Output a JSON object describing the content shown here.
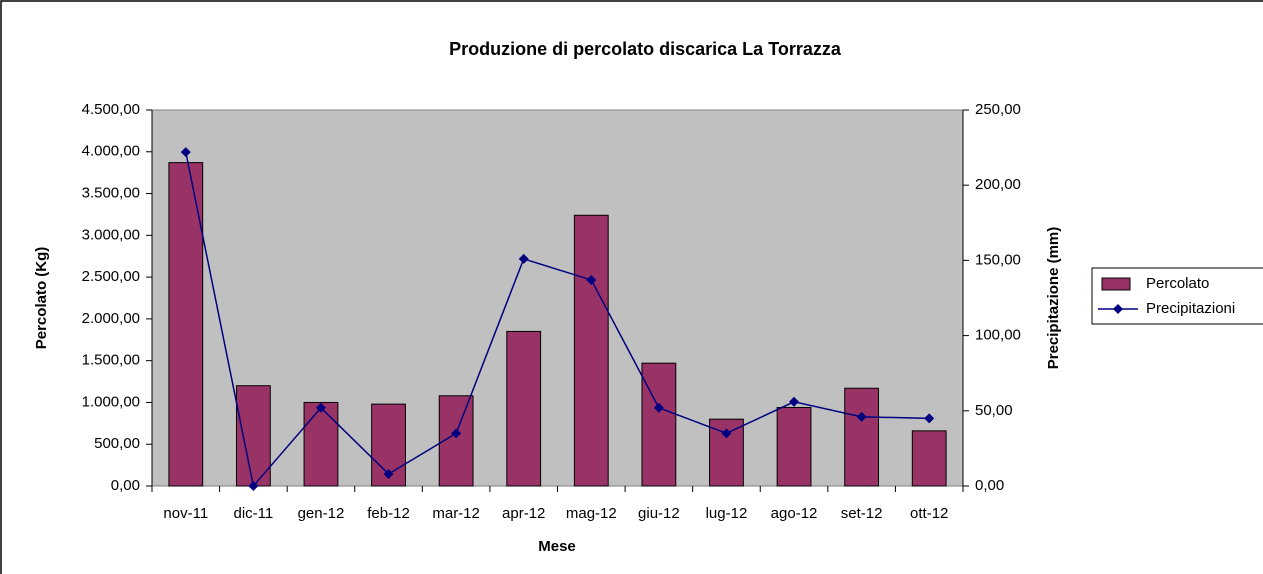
{
  "chart_data": {
    "type": "bar",
    "title": "Produzione di percolato discarica La Torrazza",
    "x_label": "Mese",
    "y_label": "Percolato (Kg)",
    "y2_label": "Precipitazione (mm)",
    "categories": [
      "nov-11",
      "dic-11",
      "gen-12",
      "feb-12",
      "mar-12",
      "apr-12",
      "mag-12",
      "giu-12",
      "lug-12",
      "ago-12",
      "set-12",
      "ott-12"
    ],
    "series": [
      {
        "name": "Percolato",
        "type": "bar",
        "color": "#993366",
        "values": [
          3870,
          1200,
          1000,
          980,
          1080,
          1850,
          3240,
          1470,
          800,
          940,
          1170,
          660
        ]
      },
      {
        "name": "Precipitazioni",
        "type": "line",
        "color": "#000080",
        "axis": "y2",
        "values": [
          222,
          0,
          52,
          8,
          35,
          151,
          137,
          52,
          35,
          56,
          46,
          45
        ]
      }
    ],
    "ylim": [
      0,
      4500
    ],
    "yticks": [
      {
        "value": 0,
        "label": "0,00"
      },
      {
        "value": 500,
        "label": "500,00"
      },
      {
        "value": 1000,
        "label": "1.000,00"
      },
      {
        "value": 1500,
        "label": "1.500,00"
      },
      {
        "value": 2000,
        "label": "2.000,00"
      },
      {
        "value": 2500,
        "label": "2.500,00"
      },
      {
        "value": 3000,
        "label": "3.000,00"
      },
      {
        "value": 3500,
        "label": "3.500,00"
      },
      {
        "value": 4000,
        "label": "4.000,00"
      },
      {
        "value": 4500,
        "label": "4.500,00"
      }
    ],
    "y2lim": [
      0,
      250
    ],
    "y2ticks": [
      {
        "value": 0,
        "label": "0,00"
      },
      {
        "value": 50,
        "label": "50,00"
      },
      {
        "value": 100,
        "label": "100,00"
      },
      {
        "value": 150,
        "label": "150,00"
      },
      {
        "value": 200,
        "label": "200,00"
      },
      {
        "value": 250,
        "label": "250,00"
      }
    ],
    "grid": false,
    "legend": "right",
    "plot_background": "#c0c0c0"
  }
}
